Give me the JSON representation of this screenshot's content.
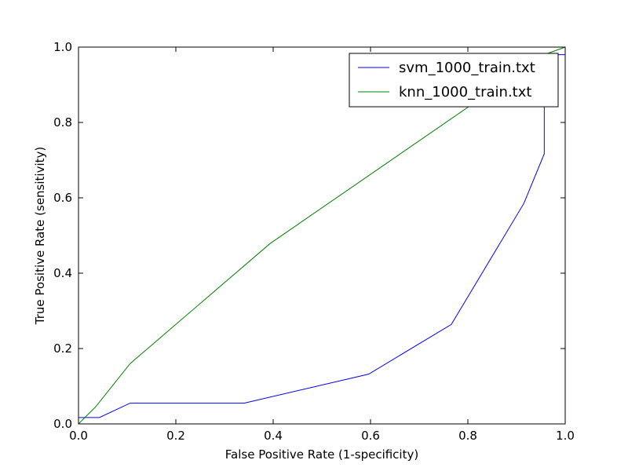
{
  "chart_data": {
    "type": "line",
    "title": "",
    "xlabel": "False Positive Rate (1-specificity)",
    "ylabel": "True Positive Rate (sensitivity)",
    "xlim": [
      0.0,
      1.0
    ],
    "ylim": [
      0.0,
      1.0
    ],
    "xticks": [
      "0.0",
      "0.2",
      "0.4",
      "0.6",
      "0.8",
      "1.0"
    ],
    "yticks": [
      "0.0",
      "0.2",
      "0.4",
      "0.6",
      "0.8",
      "1.0"
    ],
    "grid": false,
    "legend_position": "top-right",
    "series": [
      {
        "name": "svm_1000_train.txt",
        "color": "#0000ff",
        "points": [
          [
            0.0,
            0.0
          ],
          [
            0.0,
            0.017
          ],
          [
            0.043,
            0.017
          ],
          [
            0.106,
            0.055
          ],
          [
            0.34,
            0.055
          ],
          [
            0.596,
            0.132
          ],
          [
            0.766,
            0.264
          ],
          [
            0.915,
            0.585
          ],
          [
            0.957,
            0.717
          ],
          [
            0.957,
            0.98
          ],
          [
            1.0,
            0.98
          ],
          [
            1.0,
            1.0
          ]
        ]
      },
      {
        "name": "knn_1000_train.txt",
        "color": "#008000",
        "points": [
          [
            0.0,
            0.0
          ],
          [
            0.035,
            0.045
          ],
          [
            0.106,
            0.16
          ],
          [
            0.394,
            0.479
          ],
          [
            0.957,
            0.98
          ],
          [
            1.0,
            1.0
          ]
        ]
      }
    ]
  }
}
